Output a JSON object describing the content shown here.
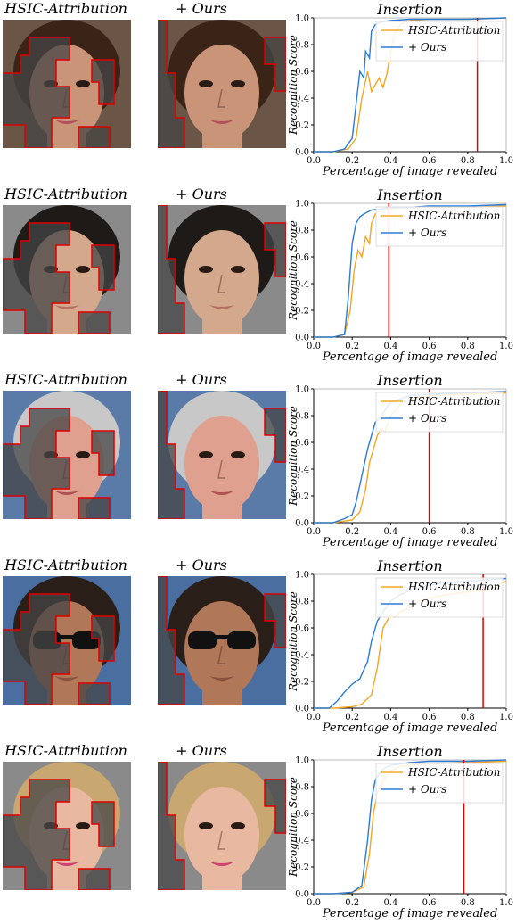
{
  "rows": [
    {
      "method_label": "HSIC-Attribution",
      "ours_label": "+ Ours",
      "face": {
        "hair": "#3a2418",
        "skin": "#c99478",
        "bg": "#6b5546",
        "lips": "#b4505a",
        "glasses": false
      },
      "chart_data": {
        "type": "line",
        "title": "Insertion",
        "xlabel": "Percentage of image revealed",
        "ylabel": "Recognition Score",
        "xlim": [
          0,
          1
        ],
        "ylim": [
          0,
          1
        ],
        "xticks": [
          "0.0",
          "0.2",
          "0.4",
          "0.6",
          "0.8",
          "1.0"
        ],
        "yticks": [
          "0.0",
          "0.2",
          "0.4",
          "0.6",
          "0.8",
          "1.0"
        ],
        "legend": "top-right",
        "marker_x": 0.85,
        "series": [
          {
            "name": "HSIC-Attribution",
            "color": "#f5a623",
            "x": [
              0,
              0.1,
              0.18,
              0.22,
              0.25,
              0.28,
              0.3,
              0.32,
              0.34,
              0.36,
              0.38,
              0.4,
              0.42,
              0.45,
              0.5,
              0.6,
              0.8,
              1.0
            ],
            "y": [
              0,
              0,
              0.02,
              0.1,
              0.4,
              0.6,
              0.45,
              0.5,
              0.55,
              0.48,
              0.58,
              0.75,
              0.88,
              0.95,
              0.98,
              0.99,
              0.99,
              1.0
            ]
          },
          {
            "name": "+ Ours",
            "color": "#2b7bd6",
            "x": [
              0,
              0.1,
              0.16,
              0.2,
              0.22,
              0.24,
              0.26,
              0.27,
              0.29,
              0.3,
              0.32,
              0.35,
              0.4,
              0.5,
              0.6,
              0.8,
              1.0
            ],
            "y": [
              0,
              0,
              0.02,
              0.1,
              0.35,
              0.6,
              0.55,
              0.75,
              0.7,
              0.9,
              0.95,
              0.97,
              0.98,
              0.99,
              0.99,
              0.99,
              1.0
            ]
          }
        ]
      }
    },
    {
      "method_label": "HSIC-Attribution",
      "ours_label": "+ Ours",
      "face": {
        "hair": "#1e1a18",
        "skin": "#d4a88c",
        "bg": "#8a8a8a",
        "lips": "#b47060",
        "glasses": false
      },
      "chart_data": {
        "type": "line",
        "title": "Insertion",
        "xlabel": "Percentage of image revealed",
        "ylabel": "Recognition Score",
        "xlim": [
          0,
          1
        ],
        "ylim": [
          0,
          1
        ],
        "xticks": [
          "0.0",
          "0.2",
          "0.4",
          "0.6",
          "0.8",
          "1.0"
        ],
        "yticks": [
          "0.0",
          "0.2",
          "0.4",
          "0.6",
          "0.8",
          "1.0"
        ],
        "legend": "top-right",
        "marker_x": 0.39,
        "series": [
          {
            "name": "HSIC-Attribution",
            "color": "#f5a623",
            "x": [
              0,
              0.1,
              0.16,
              0.19,
              0.21,
              0.23,
              0.25,
              0.27,
              0.29,
              0.3,
              0.32,
              0.35,
              0.4,
              0.5,
              0.6,
              0.8,
              1.0
            ],
            "y": [
              0,
              0,
              0.02,
              0.2,
              0.5,
              0.65,
              0.6,
              0.75,
              0.7,
              0.85,
              0.92,
              0.95,
              0.96,
              0.97,
              0.97,
              0.97,
              0.98
            ]
          },
          {
            "name": "+ Ours",
            "color": "#2b7bd6",
            "x": [
              0,
              0.1,
              0.16,
              0.18,
              0.2,
              0.22,
              0.24,
              0.26,
              0.3,
              0.35,
              0.4,
              0.5,
              0.6,
              0.8,
              1.0
            ],
            "y": [
              0,
              0,
              0.02,
              0.3,
              0.7,
              0.85,
              0.9,
              0.92,
              0.95,
              0.96,
              0.97,
              0.97,
              0.98,
              0.98,
              0.99
            ]
          }
        ]
      }
    },
    {
      "method_label": "HSIC-Attribution",
      "ours_label": "+ Ours",
      "face": {
        "hair": "#c8c8c8",
        "skin": "#e0a090",
        "bg": "#5a7aa8",
        "lips": "#b05050",
        "glasses": false
      },
      "chart_data": {
        "type": "line",
        "title": "Insertion",
        "xlabel": "Percentage of image revealed",
        "ylabel": "Recognition Score",
        "xlim": [
          0,
          1
        ],
        "ylim": [
          0,
          1
        ],
        "xticks": [
          "0.0",
          "0.2",
          "0.4",
          "0.6",
          "0.8",
          "1.0"
        ],
        "yticks": [
          "0.0",
          "0.2",
          "0.4",
          "0.6",
          "0.8",
          "1.0"
        ],
        "legend": "top-right",
        "marker_x": 0.6,
        "series": [
          {
            "name": "HSIC-Attribution",
            "color": "#f5a623",
            "x": [
              0,
              0.1,
              0.2,
              0.24,
              0.27,
              0.29,
              0.31,
              0.33,
              0.35,
              0.37,
              0.4,
              0.45,
              0.5,
              0.6,
              0.8,
              1.0
            ],
            "y": [
              0,
              0,
              0.02,
              0.08,
              0.25,
              0.45,
              0.55,
              0.65,
              0.7,
              0.68,
              0.8,
              0.88,
              0.93,
              0.95,
              0.96,
              0.97
            ]
          },
          {
            "name": "+ Ours",
            "color": "#2b7bd6",
            "x": [
              0,
              0.1,
              0.16,
              0.2,
              0.22,
              0.25,
              0.28,
              0.3,
              0.32,
              0.35,
              0.4,
              0.5,
              0.6,
              0.8,
              1.0
            ],
            "y": [
              0,
              0,
              0.03,
              0.06,
              0.15,
              0.35,
              0.55,
              0.65,
              0.75,
              0.8,
              0.9,
              0.95,
              0.96,
              0.97,
              0.98
            ]
          }
        ]
      }
    },
    {
      "method_label": "HSIC-Attribution",
      "ours_label": "+ Ours",
      "face": {
        "hair": "#2a1e18",
        "skin": "#b07858",
        "bg": "#4a6ea0",
        "lips": "#8a5040",
        "glasses": true
      },
      "chart_data": {
        "type": "line",
        "title": "Insertion",
        "xlabel": "Percentage of image revealed",
        "ylabel": "Recognition Score",
        "xlim": [
          0,
          1
        ],
        "ylim": [
          0,
          1
        ],
        "xticks": [
          "0.0",
          "0.2",
          "0.4",
          "0.6",
          "0.8",
          "1.0"
        ],
        "yticks": [
          "0.0",
          "0.2",
          "0.4",
          "0.6",
          "0.8",
          "1.0"
        ],
        "legend": "top-right",
        "marker_x": 0.88,
        "series": [
          {
            "name": "HSIC-Attribution",
            "color": "#f5a623",
            "x": [
              0,
              0.1,
              0.2,
              0.25,
              0.3,
              0.33,
              0.36,
              0.38,
              0.4,
              0.42,
              0.45,
              0.5,
              0.55,
              0.6,
              0.7,
              0.8,
              0.9,
              1.0
            ],
            "y": [
              0,
              0,
              0.01,
              0.03,
              0.1,
              0.3,
              0.6,
              0.65,
              0.7,
              0.68,
              0.72,
              0.75,
              0.8,
              0.82,
              0.85,
              0.87,
              0.88,
              0.95
            ]
          },
          {
            "name": "+ Ours",
            "color": "#2b7bd6",
            "x": [
              0,
              0.08,
              0.12,
              0.16,
              0.2,
              0.24,
              0.28,
              0.3,
              0.33,
              0.36,
              0.4,
              0.45,
              0.5,
              0.6,
              0.7,
              0.8,
              0.9,
              1.0
            ],
            "y": [
              0,
              0,
              0.05,
              0.12,
              0.18,
              0.22,
              0.35,
              0.5,
              0.65,
              0.72,
              0.8,
              0.85,
              0.88,
              0.92,
              0.94,
              0.95,
              0.96,
              0.97
            ]
          }
        ]
      }
    },
    {
      "method_label": "HSIC-Attribution",
      "ours_label": "+ Ours",
      "face": {
        "hair": "#c8a870",
        "skin": "#e8b8a0",
        "bg": "#8a8a8a",
        "lips": "#d04070",
        "glasses": false
      },
      "chart_data": {
        "type": "line",
        "title": "Insertion",
        "xlabel": "Percentage of image revealed",
        "ylabel": "Recognition Score",
        "xlim": [
          0,
          1
        ],
        "ylim": [
          0,
          1
        ],
        "xticks": [
          "0.0",
          "0.2",
          "0.4",
          "0.6",
          "0.8",
          "1.0"
        ],
        "yticks": [
          "0.0",
          "0.2",
          "0.4",
          "0.6",
          "0.8",
          "1.0"
        ],
        "legend": "top-right",
        "marker_x": 0.78,
        "series": [
          {
            "name": "HSIC-Attribution",
            "color": "#f5a623",
            "x": [
              0,
              0.1,
              0.2,
              0.26,
              0.29,
              0.31,
              0.33,
              0.35,
              0.38,
              0.4,
              0.45,
              0.5,
              0.6,
              0.8,
              1.0
            ],
            "y": [
              0,
              0,
              0.01,
              0.05,
              0.3,
              0.6,
              0.75,
              0.82,
              0.88,
              0.92,
              0.95,
              0.96,
              0.97,
              0.98,
              0.99
            ]
          },
          {
            "name": "+ Ours",
            "color": "#2b7bd6",
            "x": [
              0,
              0.1,
              0.2,
              0.25,
              0.28,
              0.3,
              0.32,
              0.34,
              0.37,
              0.4,
              0.45,
              0.5,
              0.6,
              0.8,
              1.0
            ],
            "y": [
              0,
              0,
              0.01,
              0.06,
              0.4,
              0.7,
              0.85,
              0.9,
              0.94,
              0.96,
              0.97,
              0.98,
              0.99,
              0.99,
              1.0
            ]
          }
        ]
      }
    }
  ]
}
